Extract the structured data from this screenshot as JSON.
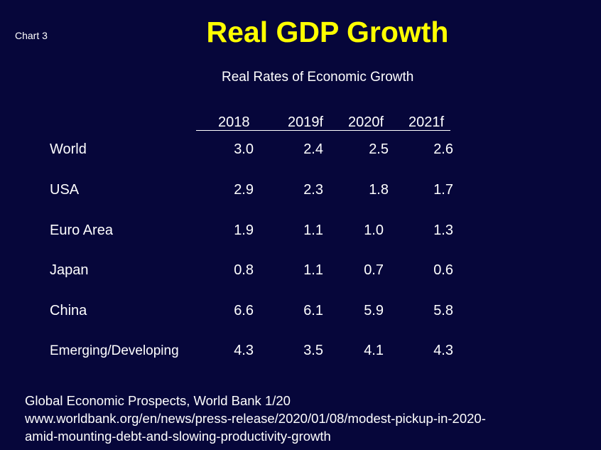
{
  "slide": {
    "chart_label": "Chart 3",
    "title": "Real GDP Growth",
    "subtitle": "Real Rates of Economic Growth"
  },
  "table": {
    "columns": [
      "2018",
      "2019f",
      "2020f",
      "2021f"
    ],
    "rows": [
      {
        "label": "World",
        "values": [
          "3.0",
          "2.4",
          "2.5",
          "2.6"
        ]
      },
      {
        "label": "USA",
        "values": [
          "2.9",
          "2.3",
          "1.8",
          "1.7"
        ]
      },
      {
        "label": "Euro Area",
        "values": [
          "1.9",
          "1.1",
          "1.0",
          "1.3"
        ]
      },
      {
        "label": "Japan",
        "values": [
          "0.8",
          "1.1",
          "0.7",
          "0.6"
        ]
      },
      {
        "label": "China",
        "values": [
          "6.6",
          "6.1",
          "5.9",
          "5.8"
        ]
      },
      {
        "label": "Emerging/Developing",
        "values": [
          "4.3",
          "3.5",
          "4.1",
          "4.3"
        ]
      }
    ]
  },
  "source": {
    "line1": "Global Economic Prospects, World Bank  1/20",
    "line2": "www.worldbank.org/en/news/press-release/2020/01/08/modest-pickup-in-2020-",
    "line3": "amid-mounting-debt-and-slowing-productivity-growth"
  },
  "colors": {
    "background": "#06063a",
    "title": "#ffff00",
    "text": "#ffffff"
  }
}
